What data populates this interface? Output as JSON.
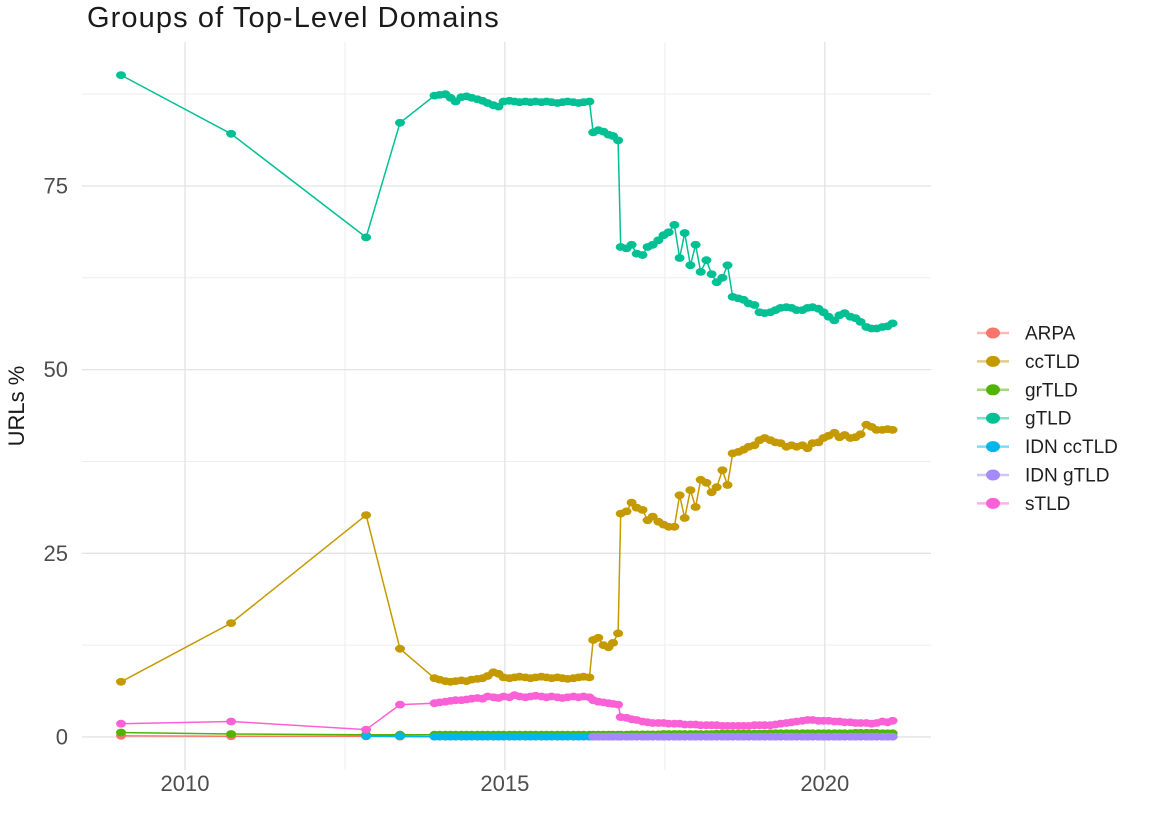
{
  "page": {
    "background": "#ffffff"
  },
  "chart": {
    "title": "Groups of Top-Level Domains",
    "y_axis_title": "URLs %",
    "x_tick_labels": [
      "2010",
      "2015",
      "2020"
    ],
    "y_tick_labels": [
      "0",
      "25",
      "50",
      "75"
    ]
  },
  "legend": {
    "items": [
      {
        "label": "ARPA",
        "color": "#F8766D"
      },
      {
        "label": "ccTLD",
        "color": "#C49A00"
      },
      {
        "label": "grTLD",
        "color": "#53B400"
      },
      {
        "label": "gTLD",
        "color": "#00C094"
      },
      {
        "label": "IDN ccTLD",
        "color": "#00B6EB"
      },
      {
        "label": "IDN gTLD",
        "color": "#A58AFF"
      },
      {
        "label": "sTLD",
        "color": "#FB61D7"
      }
    ]
  },
  "chart_data": {
    "type": "scatter",
    "title": "Groups of Top-Level Domains",
    "xlabel": "",
    "ylabel": "URLs %",
    "grid": true,
    "legend_position": "right",
    "xlim": [
      2008.39,
      2021.66
    ],
    "ylim": [
      -4.5,
      94.6
    ],
    "x_ticks": [
      2010,
      2015,
      2020
    ],
    "x_minor_ticks": [
      2012.5,
      2017.5
    ],
    "y_ticks": [
      0,
      25,
      50,
      75
    ],
    "y_minor_ticks": [
      12.5,
      37.5,
      62.5,
      87.5
    ],
    "x": [
      2009.0,
      2010.72,
      2012.83,
      2013.36,
      2013.9,
      2013.98,
      2014.07,
      2014.15,
      2014.23,
      2014.32,
      2014.4,
      2014.48,
      2014.57,
      2014.65,
      2014.73,
      2014.82,
      2014.9,
      2014.98,
      2015.07,
      2015.15,
      2015.23,
      2015.32,
      2015.4,
      2015.48,
      2015.57,
      2015.65,
      2015.73,
      2015.82,
      2015.9,
      2015.98,
      2016.07,
      2016.15,
      2016.23,
      2016.32,
      2016.38,
      2016.46,
      2016.54,
      2016.62,
      2016.69,
      2016.77,
      2016.81,
      2016.9,
      2016.98,
      2017.06,
      2017.15,
      2017.23,
      2017.31,
      2017.4,
      2017.48,
      2017.56,
      2017.65,
      2017.73,
      2017.81,
      2017.9,
      2017.98,
      2018.06,
      2018.15,
      2018.23,
      2018.31,
      2018.4,
      2018.48,
      2018.56,
      2018.65,
      2018.73,
      2018.81,
      2018.9,
      2018.98,
      2019.06,
      2019.15,
      2019.23,
      2019.31,
      2019.4,
      2019.48,
      2019.56,
      2019.65,
      2019.73,
      2019.81,
      2019.9,
      2019.98,
      2020.06,
      2020.15,
      2020.23,
      2020.31,
      2020.4,
      2020.48,
      2020.56,
      2020.65,
      2020.73,
      2020.81,
      2020.9,
      2020.98,
      2021.06
    ],
    "series": [
      {
        "name": "ARPA",
        "color": "#F8766D",
        "values": [
          0.15,
          0.1,
          0.1,
          0.05,
          0.05,
          0.05,
          0.05,
          0.05,
          0.05,
          0.05,
          0.05,
          0.05,
          0.05,
          0.05,
          0.05,
          0.05,
          0.05,
          0.05,
          0.05,
          0.05,
          0.05,
          0.05,
          0.05,
          0.05,
          0.05,
          0.05,
          0.05,
          0.05,
          0.05,
          0.05,
          0.05,
          0.05,
          0.05,
          0.05,
          0.05,
          0.05,
          0.05,
          0.05,
          0.05,
          0.05,
          0.05,
          0.05,
          0.05,
          0.05,
          0.05,
          0.05,
          0.05,
          0.05,
          0.05,
          0.05,
          0.05,
          0.05,
          0.05,
          0.05,
          0.05,
          0.05,
          0.05,
          0.05,
          0.05,
          0.05,
          0.05,
          0.05,
          0.05,
          0.05,
          0.05,
          0.05,
          0.05,
          0.05,
          0.05,
          0.05,
          0.05,
          0.05,
          0.05,
          0.05,
          0.05,
          0.05,
          0.05,
          0.05,
          0.05,
          0.05,
          0.05,
          0.05,
          0.05,
          0.05,
          0.05,
          0.05,
          0.05,
          0.05,
          0.05,
          0.05,
          0.05,
          0.05
        ]
      },
      {
        "name": "ccTLD",
        "color": "#C49A00",
        "values": [
          7.5,
          15.5,
          30.2,
          12.0,
          8.0,
          7.8,
          7.6,
          7.5,
          7.6,
          7.7,
          7.6,
          7.8,
          7.9,
          8.0,
          8.3,
          8.8,
          8.6,
          8.1,
          8.0,
          8.1,
          8.2,
          8.1,
          8.0,
          8.1,
          8.2,
          8.1,
          8.0,
          8.1,
          8.0,
          7.9,
          8.0,
          8.1,
          8.2,
          8.1,
          13.2,
          13.5,
          12.5,
          12.2,
          12.8,
          14.1,
          30.4,
          30.7,
          31.9,
          31.2,
          30.9,
          29.5,
          30.0,
          29.3,
          28.9,
          28.6,
          28.6,
          32.9,
          29.8,
          33.6,
          31.3,
          35.0,
          34.6,
          33.3,
          34.0,
          36.3,
          34.3,
          38.6,
          38.8,
          39.1,
          39.5,
          39.7,
          40.4,
          40.7,
          40.4,
          40.1,
          40.0,
          39.5,
          39.7,
          39.5,
          39.7,
          39.3,
          40.0,
          40.1,
          40.7,
          41.0,
          41.4,
          40.8,
          41.1,
          40.7,
          40.8,
          41.2,
          42.5,
          42.2,
          41.8,
          41.8,
          41.9,
          41.8
        ]
      },
      {
        "name": "grTLD",
        "color": "#53B400",
        "values": [
          0.6,
          0.4,
          0.3,
          0.3,
          0.3,
          0.3,
          0.3,
          0.3,
          0.3,
          0.3,
          0.3,
          0.3,
          0.3,
          0.3,
          0.3,
          0.3,
          0.3,
          0.3,
          0.3,
          0.3,
          0.3,
          0.3,
          0.3,
          0.3,
          0.3,
          0.3,
          0.3,
          0.3,
          0.3,
          0.3,
          0.3,
          0.3,
          0.3,
          0.3,
          0.3,
          0.3,
          0.3,
          0.3,
          0.3,
          0.3,
          0.3,
          0.3,
          0.35,
          0.35,
          0.35,
          0.35,
          0.35,
          0.35,
          0.4,
          0.4,
          0.4,
          0.4,
          0.4,
          0.4,
          0.4,
          0.4,
          0.4,
          0.4,
          0.45,
          0.45,
          0.45,
          0.45,
          0.45,
          0.45,
          0.45,
          0.45,
          0.45,
          0.45,
          0.5,
          0.5,
          0.5,
          0.5,
          0.5,
          0.5,
          0.5,
          0.5,
          0.5,
          0.5,
          0.5,
          0.5,
          0.5,
          0.5,
          0.5,
          0.5,
          0.55,
          0.55,
          0.55,
          0.55,
          0.55,
          0.5,
          0.5,
          0.5
        ]
      },
      {
        "name": "gTLD",
        "color": "#00C094",
        "values": [
          90.1,
          82.1,
          68.0,
          83.6,
          87.3,
          87.4,
          87.5,
          87.0,
          86.5,
          87.1,
          87.2,
          87.0,
          86.8,
          86.6,
          86.3,
          86.0,
          85.8,
          86.5,
          86.6,
          86.5,
          86.4,
          86.5,
          86.4,
          86.5,
          86.4,
          86.5,
          86.4,
          86.3,
          86.4,
          86.5,
          86.4,
          86.3,
          86.4,
          86.5,
          82.3,
          82.6,
          82.4,
          82.0,
          81.8,
          81.2,
          66.7,
          66.5,
          67.0,
          65.8,
          65.6,
          66.7,
          67.0,
          67.6,
          68.3,
          68.7,
          69.7,
          65.2,
          68.6,
          64.2,
          67.0,
          63.3,
          64.9,
          63.0,
          61.9,
          62.5,
          64.2,
          59.9,
          59.7,
          59.5,
          59.0,
          58.8,
          57.8,
          57.7,
          57.8,
          58.1,
          58.4,
          58.5,
          58.4,
          58.1,
          58.1,
          58.4,
          58.5,
          58.3,
          57.8,
          57.2,
          56.7,
          57.4,
          57.7,
          57.2,
          57.0,
          56.5,
          55.8,
          55.6,
          55.6,
          55.8,
          55.9,
          56.3
        ]
      },
      {
        "name": "IDN ccTLD",
        "color": "#00B6EB",
        "values": [
          null,
          null,
          0.1,
          0.1,
          0.05,
          0.05,
          0.05,
          0.05,
          0.05,
          0.05,
          0.05,
          0.05,
          0.05,
          0.05,
          0.05,
          0.05,
          0.05,
          0.05,
          0.05,
          0.05,
          0.05,
          0.05,
          0.05,
          0.05,
          0.05,
          0.05,
          0.05,
          0.05,
          0.05,
          0.05,
          0.05,
          0.05,
          0.05,
          0.05,
          0.05,
          0.05,
          0.05,
          0.05,
          0.05,
          0.05,
          0.05,
          0.05,
          0.05,
          0.05,
          0.05,
          0.05,
          0.05,
          0.05,
          0.05,
          0.05,
          0.05,
          0.05,
          0.05,
          0.05,
          0.05,
          0.05,
          0.05,
          0.05,
          0.05,
          0.05,
          0.05,
          0.05,
          0.05,
          0.05,
          0.05,
          0.05,
          0.05,
          0.05,
          0.05,
          0.05,
          0.05,
          0.05,
          0.05,
          0.05,
          0.05,
          0.05,
          0.05,
          0.05,
          0.05,
          0.05,
          0.05,
          0.05,
          0.05,
          0.05,
          0.05,
          0.05,
          0.05,
          0.05,
          0.05,
          0.05,
          0.05,
          0.05
        ]
      },
      {
        "name": "IDN gTLD",
        "color": "#A58AFF",
        "values": [
          null,
          null,
          null,
          null,
          null,
          null,
          null,
          null,
          null,
          null,
          null,
          null,
          null,
          null,
          null,
          null,
          null,
          null,
          null,
          null,
          null,
          null,
          null,
          null,
          null,
          null,
          null,
          null,
          null,
          null,
          null,
          null,
          null,
          null,
          0.05,
          0.05,
          0.05,
          0.05,
          0.05,
          0.05,
          0.05,
          0.05,
          0.05,
          0.05,
          0.05,
          0.05,
          0.05,
          0.05,
          0.05,
          0.05,
          0.05,
          0.05,
          0.05,
          0.05,
          0.05,
          0.05,
          0.05,
          0.05,
          0.05,
          0.05,
          0.05,
          0.05,
          0.05,
          0.05,
          0.05,
          0.05,
          0.05,
          0.05,
          0.05,
          0.05,
          0.05,
          0.05,
          0.05,
          0.05,
          0.05,
          0.05,
          0.05,
          0.05,
          0.05,
          0.05,
          0.05,
          0.05,
          0.05,
          0.05,
          0.05,
          0.05,
          0.05,
          0.05,
          0.05,
          0.05,
          0.05,
          0.05
        ]
      },
      {
        "name": "sTLD",
        "color": "#FB61D7",
        "values": [
          1.8,
          2.1,
          1.0,
          4.4,
          4.6,
          4.7,
          4.8,
          4.9,
          5.0,
          5.0,
          5.1,
          5.2,
          5.3,
          5.2,
          5.5,
          5.4,
          5.3,
          5.5,
          5.4,
          5.7,
          5.5,
          5.4,
          5.5,
          5.6,
          5.5,
          5.4,
          5.5,
          5.4,
          5.3,
          5.4,
          5.5,
          5.4,
          5.5,
          5.4,
          5.0,
          4.8,
          4.7,
          4.6,
          4.5,
          4.4,
          2.7,
          2.6,
          2.4,
          2.3,
          2.1,
          2.0,
          1.9,
          1.9,
          1.9,
          1.8,
          1.8,
          1.8,
          1.7,
          1.7,
          1.7,
          1.6,
          1.6,
          1.6,
          1.6,
          1.5,
          1.5,
          1.5,
          1.5,
          1.5,
          1.5,
          1.6,
          1.6,
          1.6,
          1.6,
          1.7,
          1.8,
          1.9,
          2.0,
          2.1,
          2.2,
          2.3,
          2.3,
          2.2,
          2.2,
          2.2,
          2.1,
          2.1,
          2.0,
          2.0,
          1.9,
          1.9,
          1.9,
          1.8,
          1.9,
          2.1,
          2.0,
          2.2
        ]
      }
    ]
  }
}
